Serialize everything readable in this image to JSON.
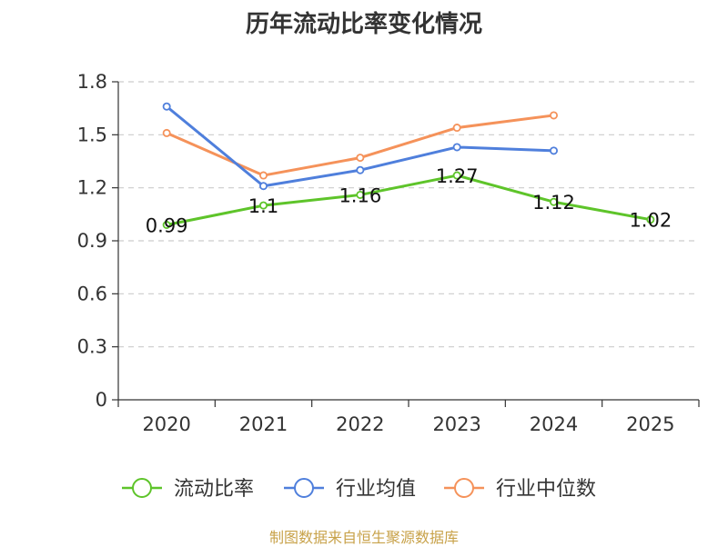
{
  "chart_data": {
    "type": "line",
    "title": "历年流动比率变化情况",
    "categories": [
      "2020",
      "2021",
      "2022",
      "2023",
      "2024",
      "2025"
    ],
    "y_ticks": [
      "0",
      "0.3",
      "0.6",
      "0.9",
      "1.2",
      "1.5",
      "1.8"
    ],
    "ylim": [
      0,
      1.8
    ],
    "grid": true,
    "legend_position": "bottom",
    "series": [
      {
        "name": "流动比率",
        "color": "#5ec42a",
        "values": [
          0.99,
          1.1,
          1.16,
          1.27,
          1.12,
          1.02
        ],
        "labels": [
          "0.99",
          "1.1",
          "1.16",
          "1.27",
          "1.12",
          "1.02"
        ]
      },
      {
        "name": "行业均值",
        "color": "#4f7fdc",
        "values": [
          1.66,
          1.21,
          1.3,
          1.43,
          1.41,
          null
        ]
      },
      {
        "name": "行业中位数",
        "color": "#f5925a",
        "values": [
          1.51,
          1.27,
          1.37,
          1.54,
          1.61,
          null
        ]
      }
    ],
    "source": "制图数据来自恒生聚源数据库"
  }
}
